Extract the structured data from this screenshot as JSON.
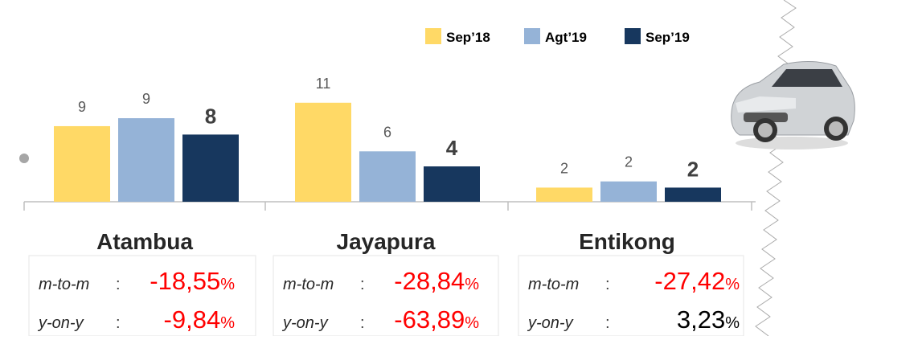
{
  "chart_data": {
    "type": "bar",
    "categories": [
      "Atambua",
      "Jayapura",
      "Entikong"
    ],
    "series": [
      {
        "name": "Sep’18",
        "color": "#ffd966",
        "values": [
          8.55,
          11.2,
          1.6
        ],
        "value_labels": [
          "9",
          "11",
          "2"
        ]
      },
      {
        "name": "Agt’19",
        "color": "#95b3d7",
        "values": [
          9.45,
          5.7,
          2.3
        ],
        "value_labels": [
          "9",
          "6",
          "2"
        ]
      },
      {
        "name": "Sep’19",
        "color": "#17375e",
        "values": [
          7.6,
          4.0,
          1.6
        ],
        "value_labels": [
          "8",
          "4",
          "2"
        ]
      }
    ],
    "stats": [
      {
        "rows": [
          {
            "label": "m-to-m",
            "separator": ":",
            "value": "-18,55",
            "unit": "%"
          },
          {
            "label": "y-on-y",
            "separator": ":",
            "value": "-9,84",
            "unit": "%"
          }
        ]
      },
      {
        "rows": [
          {
            "label": "m-to-m",
            "separator": ":",
            "value": "-28,84",
            "unit": "%"
          },
          {
            "label": "y-on-y",
            "separator": ":",
            "value": "-63,89",
            "unit": "%"
          }
        ]
      },
      {
        "rows": [
          {
            "label": "m-to-m",
            "separator": ":",
            "value": "-27,42",
            "unit": "%"
          },
          {
            "label": "y-on-y",
            "separator": ":",
            "value": "3,23",
            "unit": "%"
          }
        ]
      }
    ]
  }
}
